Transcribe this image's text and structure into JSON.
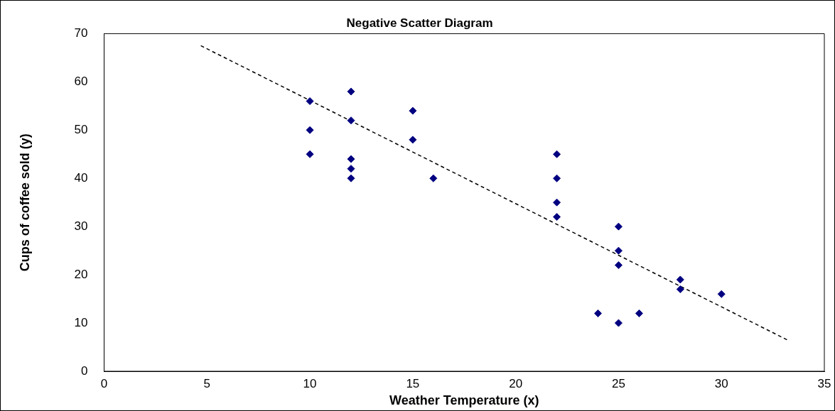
{
  "chart_data": {
    "type": "scatter",
    "title": "Negative Scatter Diagram",
    "xlabel": "Weather Temperature (x)",
    "ylabel": "Cups of coffee sold (y)",
    "xlim": [
      0,
      35
    ],
    "xticks": [
      0,
      5,
      10,
      15,
      20,
      25,
      30,
      35
    ],
    "ylim": [
      0,
      70
    ],
    "yticks": [
      0,
      10,
      20,
      30,
      40,
      50,
      60,
      70
    ],
    "grid": false,
    "legend": false,
    "marker": "diamond",
    "series": [
      {
        "color": "#000080",
        "x": [
          10,
          10,
          10,
          12,
          12,
          12,
          12,
          12,
          15,
          15,
          16,
          22,
          22,
          22,
          22,
          25,
          25,
          25,
          24,
          25,
          26,
          28,
          28,
          30
        ],
        "values": [
          56,
          50,
          45,
          58,
          52,
          44,
          42,
          40,
          54,
          48,
          40,
          45,
          40,
          35,
          32,
          30,
          25,
          22,
          12,
          10,
          12,
          19,
          17,
          16
        ]
      },
      {
        "type": "line",
        "color": "#000000",
        "line_style": "dashed",
        "marker": "none",
        "x": [
          4.7,
          33.2
        ],
        "values": [
          67.5,
          6.5
        ]
      }
    ]
  }
}
